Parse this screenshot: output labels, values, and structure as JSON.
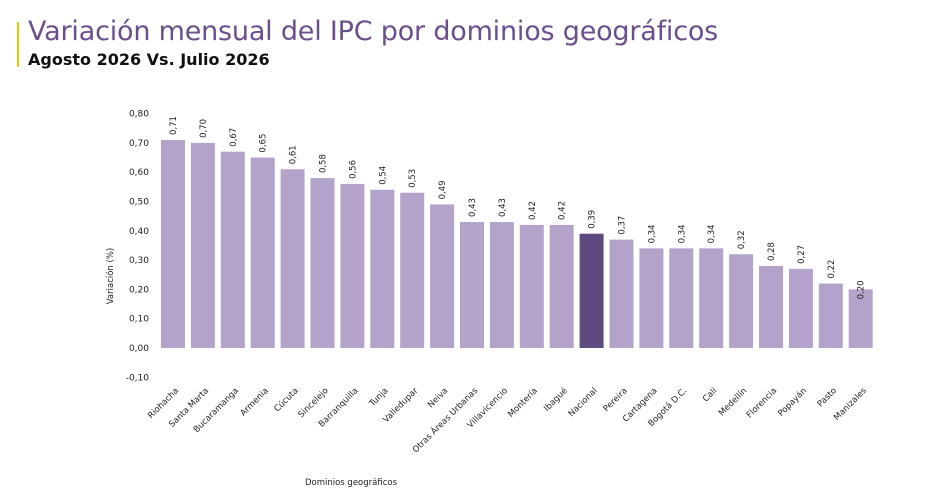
{
  "header": {
    "title": "Variación mensual del IPC por dominios geográficos",
    "subtitle": "Agosto 2026 Vs. Julio 2026"
  },
  "colors": {
    "accent": "#f2c400",
    "bar": "#b3a3cb",
    "highlight": "#5e4a80",
    "title": "#6a4f8c"
  },
  "chart_data": {
    "type": "bar",
    "title": "Variación mensual del IPC por dominios geográficos",
    "subtitle": "Agosto 2026 Vs. Julio 2026",
    "xlabel": "Dominios geográficos",
    "ylabel": "Variación (%)",
    "ylim": [
      -0.1,
      0.8
    ],
    "yticks": [
      "-0,10",
      "0,00",
      "0,10",
      "0,20",
      "0,30",
      "0,40",
      "0,50",
      "0,60",
      "0,70",
      "0,80"
    ],
    "highlight_category": "Nacional",
    "grid": false,
    "categories": [
      "Riohacha",
      "Santa Marta",
      "Bucaramanga",
      "Armenia",
      "Cúcuta",
      "Sincelejo",
      "Barranquilla",
      "Tunja",
      "Valledupar",
      "Neiva",
      "Otras Áreas Urbanas",
      "Villavicencio",
      "Montería",
      "Ibagué",
      "Nacional",
      "Pereira",
      "Cartagena",
      "Bogotá D.C.",
      "Cali",
      "Medellín",
      "Florencia",
      "Popayán",
      "Pasto",
      "Manizales"
    ],
    "values": [
      0.71,
      0.7,
      0.67,
      0.65,
      0.61,
      0.58,
      0.56,
      0.54,
      0.53,
      0.49,
      0.43,
      0.43,
      0.42,
      0.42,
      0.39,
      0.37,
      0.34,
      0.34,
      0.34,
      0.32,
      0.28,
      0.27,
      0.22,
      0.2
    ],
    "labels": [
      "0,71",
      "0,70",
      "0,67",
      "0,65",
      "0,61",
      "0,58",
      "0,56",
      "0,54",
      "0,53",
      "0,49",
      "0,43",
      "0,43",
      "0,42",
      "0,42",
      "0,39",
      "0,37",
      "0,34",
      "0,34",
      "0,34",
      "0,32",
      "0,28",
      "0,27",
      "0,22",
      "0,20"
    ]
  }
}
